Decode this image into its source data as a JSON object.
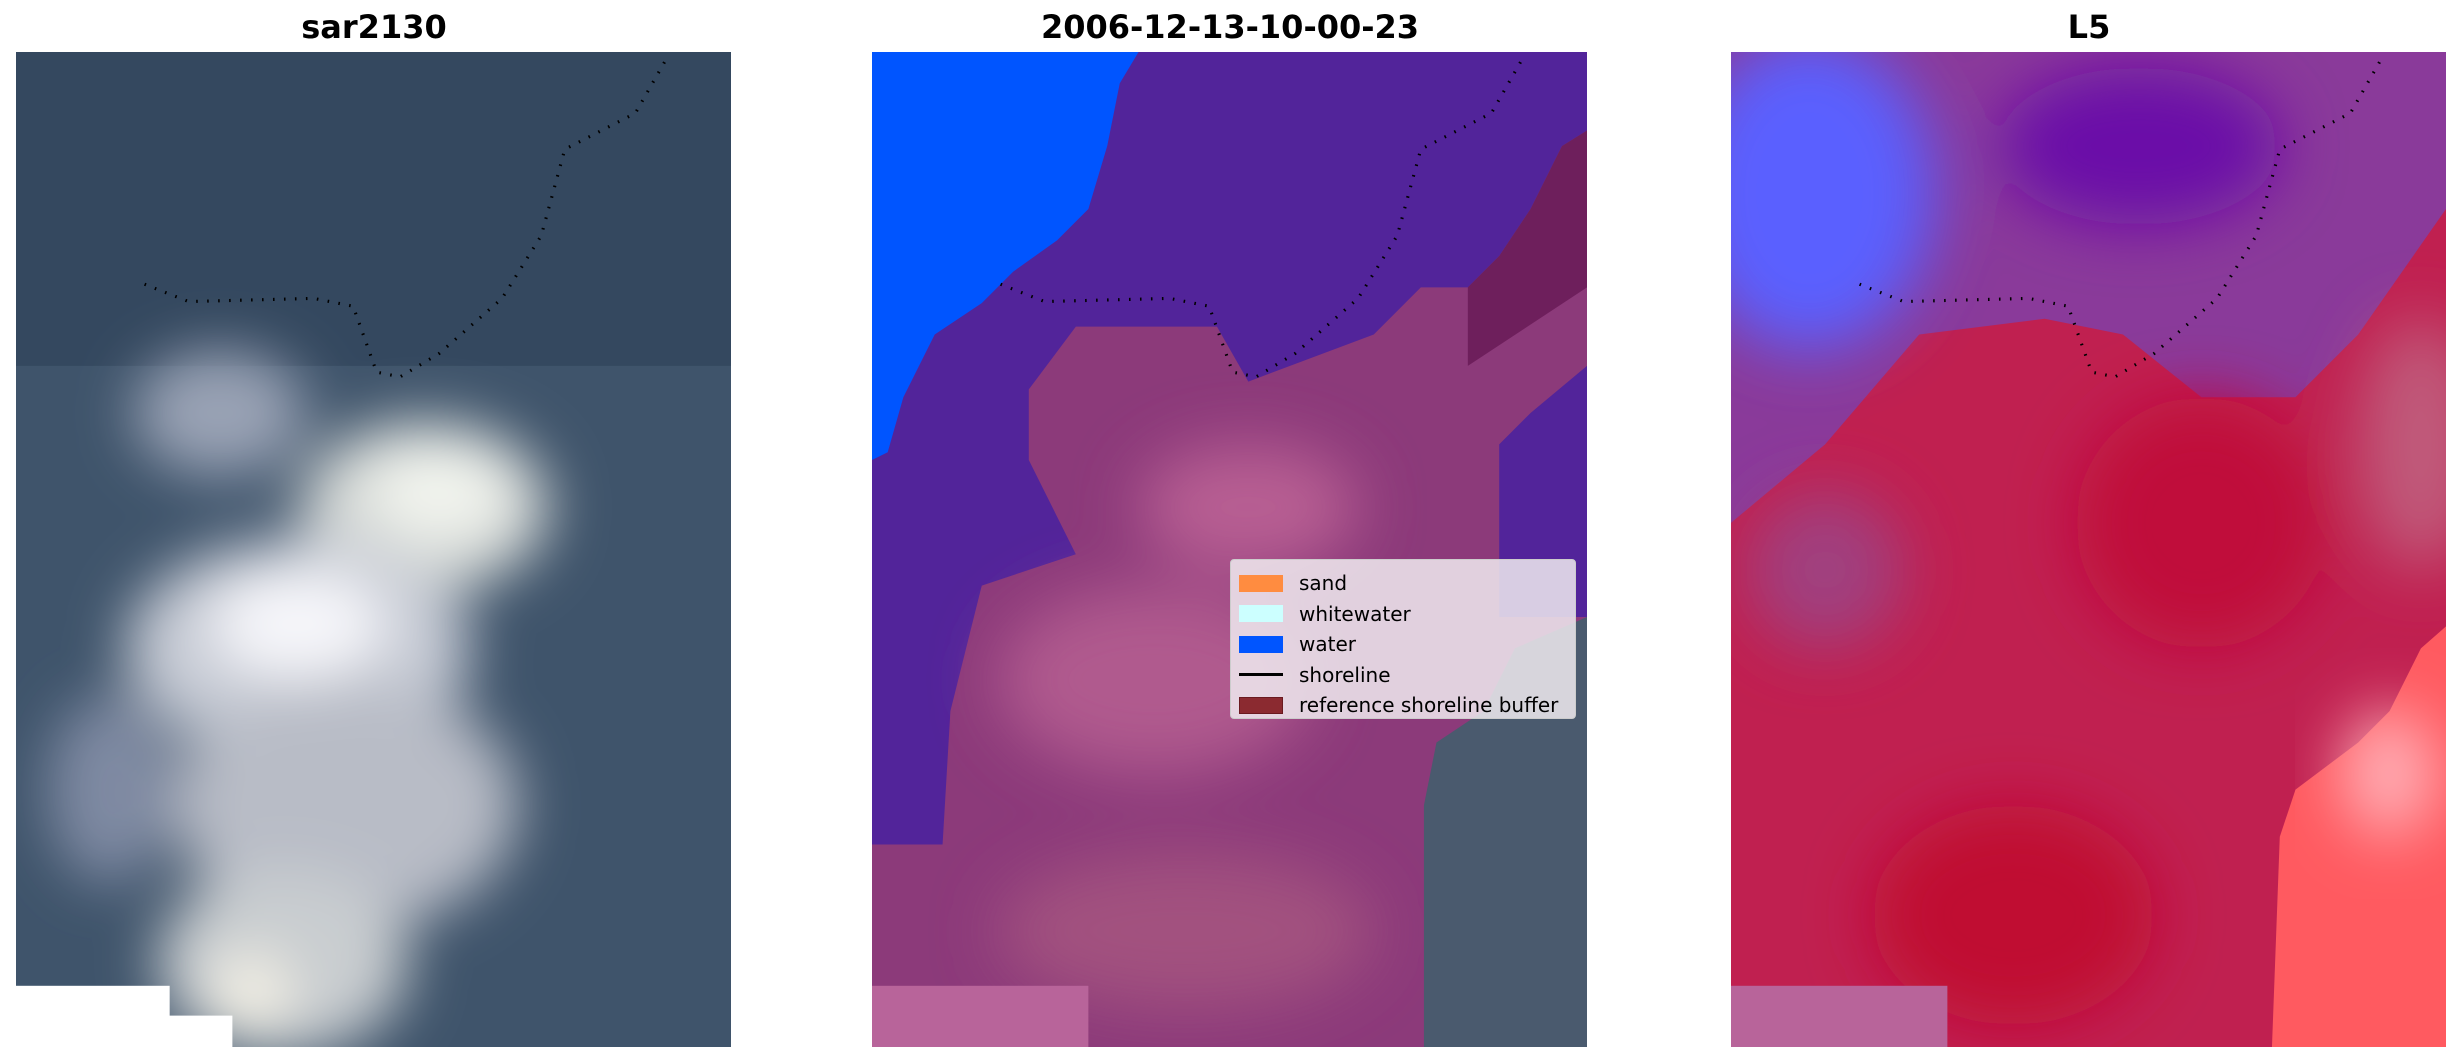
{
  "panels": [
    {
      "title": "sar2130"
    },
    {
      "title": "2006-12-13-10-00-23"
    },
    {
      "title": "L5"
    }
  ],
  "legend": {
    "items": [
      {
        "label": "sand",
        "color": "#ff8c40",
        "kind": "patch"
      },
      {
        "label": "whitewater",
        "color": "#ccffff",
        "kind": "patch"
      },
      {
        "label": "water",
        "color": "#0055ff",
        "kind": "patch"
      },
      {
        "label": "shoreline",
        "color": "#000000",
        "kind": "line"
      },
      {
        "label": "reference shoreline buffer",
        "color": "#8b2a30",
        "kind": "patch"
      }
    ]
  }
}
